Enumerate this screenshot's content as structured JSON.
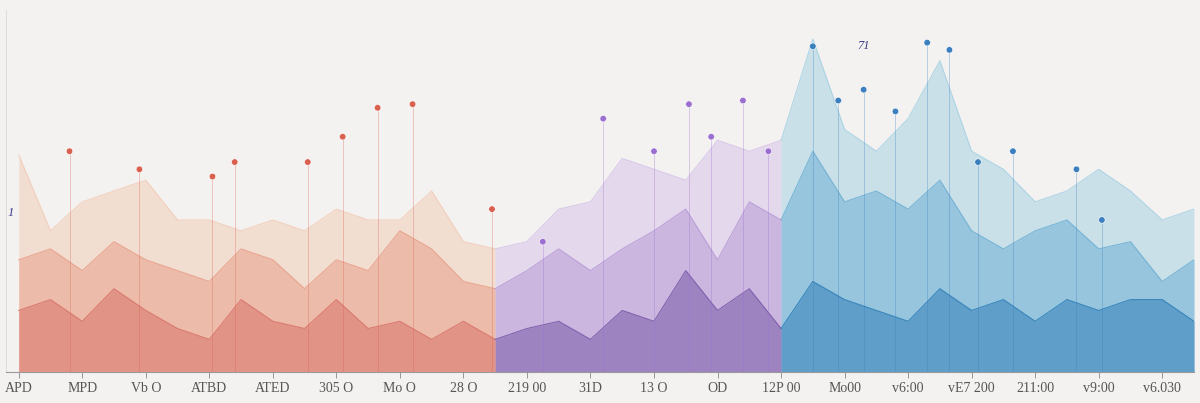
{
  "chart_data": {
    "type": "area",
    "xlim": [
      -0.4,
      37
    ],
    "ylim": [
      0,
      100
    ],
    "xticks": [
      {
        "value": 0,
        "label": "APD"
      },
      {
        "value": 2,
        "label": "MPD"
      },
      {
        "value": 4,
        "label": "Vb O"
      },
      {
        "value": 6,
        "label": "ATBD"
      },
      {
        "value": 8,
        "label": "ATED"
      },
      {
        "value": 10,
        "label": "305 O"
      },
      {
        "value": 12,
        "label": "Mo O"
      },
      {
        "value": 14,
        "label": "28 O"
      },
      {
        "value": 16,
        "label": "219 00"
      },
      {
        "value": 18,
        "label": "31D"
      },
      {
        "value": 20,
        "label": "13 O"
      },
      {
        "value": 22,
        "label": "OD"
      },
      {
        "value": 24,
        "label": "12P 00"
      },
      {
        "value": 26,
        "label": "Mo00"
      },
      {
        "value": 28,
        "label": "v6:00"
      },
      {
        "value": 30,
        "label": "vE7 200"
      },
      {
        "value": 32,
        "label": "211:00"
      },
      {
        "value": 34,
        "label": "v9:00"
      },
      {
        "value": 36,
        "label": "v6.030"
      }
    ],
    "tick_labels": "x",
    "grid": false,
    "series": [
      {
        "color": "#f2cdb9",
        "x": [
          0,
          1,
          2,
          3,
          4,
          5,
          6,
          7,
          8,
          9,
          10,
          11,
          12,
          13,
          14,
          15
        ],
        "values": [
          60,
          39,
          47,
          50,
          53,
          42,
          42,
          39,
          42,
          39,
          45,
          42,
          42,
          50,
          36,
          34
        ]
      },
      {
        "color": "#d8c4ea",
        "x": [
          15,
          16,
          17,
          18,
          19,
          20,
          21,
          22,
          23,
          24
        ],
        "values": [
          34,
          36,
          45,
          47,
          59,
          56,
          53,
          64,
          61,
          64
        ]
      },
      {
        "color": "#a8d2e4",
        "x": [
          24,
          25,
          26,
          27,
          28,
          29,
          30,
          31,
          32,
          33,
          34,
          35,
          36,
          37
        ],
        "values": [
          64,
          92,
          67,
          61,
          70,
          86,
          61,
          56,
          47,
          50,
          56,
          50,
          42,
          45
        ]
      },
      {
        "color": "#e8a08a",
        "x": [
          0,
          1,
          2,
          3,
          4,
          5,
          6,
          7,
          8,
          9,
          10,
          11,
          12,
          13,
          14,
          15
        ],
        "values": [
          31,
          34,
          28,
          36,
          31,
          28,
          25,
          34,
          31,
          23,
          31,
          28,
          39,
          34,
          25,
          23
        ]
      },
      {
        "color": "#b89bd7",
        "x": [
          15,
          16,
          17,
          18,
          19,
          20,
          21,
          22,
          23,
          24
        ],
        "values": [
          23,
          28,
          34,
          28,
          34,
          39,
          45,
          31,
          47,
          42
        ]
      },
      {
        "color": "#6fb0d4",
        "x": [
          24,
          25,
          26,
          27,
          28,
          29,
          30,
          31,
          32,
          33,
          34,
          35,
          36,
          37
        ],
        "values": [
          42,
          61,
          47,
          50,
          45,
          53,
          39,
          34,
          39,
          42,
          34,
          36,
          25,
          31
        ]
      },
      {
        "color": "#d9736a",
        "x": [
          0,
          1,
          2,
          3,
          4,
          5,
          6,
          7,
          8,
          9,
          10,
          11,
          12,
          13,
          14,
          15
        ],
        "values": [
          17,
          20,
          14,
          23,
          17,
          12,
          9,
          20,
          14,
          12,
          20,
          12,
          14,
          9,
          14,
          9
        ]
      },
      {
        "color": "#7a5aa8",
        "x": [
          15,
          16,
          17,
          18,
          19,
          20,
          21,
          22,
          23,
          24
        ],
        "values": [
          9,
          12,
          14,
          9,
          17,
          14,
          28,
          17,
          23,
          12
        ]
      },
      {
        "color": "#2f7fb8",
        "x": [
          24,
          25,
          26,
          27,
          28,
          29,
          30,
          31,
          32,
          33,
          34,
          35,
          36,
          37
        ],
        "values": [
          12,
          25,
          20,
          17,
          14,
          23,
          17,
          20,
          14,
          20,
          17,
          20,
          20,
          14
        ]
      },
      {
        "type": "scatter",
        "marker": "o",
        "x": [
          1.6,
          3.8,
          6.1,
          6.8,
          9.1,
          10.2,
          11.3,
          12.4,
          14.9,
          16.5,
          18.4,
          20,
          21.1,
          21.8,
          22.8,
          23.6,
          25,
          25.8,
          26.6,
          27.6,
          28.6,
          29.3,
          30.2,
          31.3,
          33.3,
          34.1
        ],
        "values": [
          61,
          56,
          54,
          58,
          58,
          65,
          73,
          74,
          45,
          36,
          70,
          61,
          74,
          65,
          75,
          61,
          90,
          75,
          78,
          72,
          91,
          89,
          58,
          61,
          56,
          42
        ],
        "colors": [
          "#d9604f",
          "#d9604f",
          "#d9604f",
          "#d9604f",
          "#d9604f",
          "#d9604f",
          "#d9604f",
          "#d9604f",
          "#d9604f",
          "#9b6fcf",
          "#9b6fcf",
          "#9b6fcf",
          "#9b6fcf",
          "#9b6fcf",
          "#9b6fcf",
          "#9b6fcf",
          "#3b7fbf",
          "#3b7fbf",
          "#3b7fbf",
          "#3b7fbf",
          "#3b7fbf",
          "#3b7fbf",
          "#3b7fbf",
          "#3b7fbf",
          "#3b7fbf",
          "#3b7fbf"
        ]
      }
    ],
    "annotations": [
      {
        "text": "71",
        "x": 26.6,
        "y": 90
      },
      {
        "text": "1",
        "x": -0.25,
        "y": 44
      }
    ]
  }
}
